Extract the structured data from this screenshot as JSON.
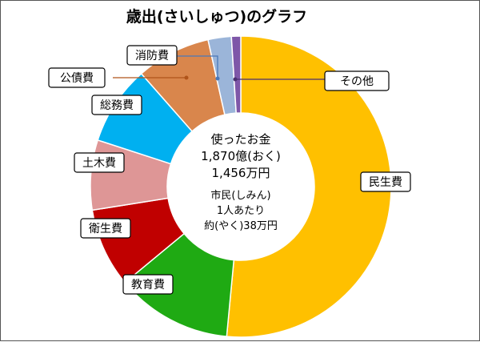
{
  "chart_data": {
    "type": "pie",
    "title": "歳出(さいしゅつ)のグラフ",
    "categories": [
      "民生費",
      "教育費",
      "衛生費",
      "土木費",
      "総務費",
      "公債費",
      "消防費",
      "その他"
    ],
    "values": [
      51.5,
      12.5,
      8.5,
      7.5,
      8.5,
      8.0,
      2.5,
      1.0
    ],
    "unit": "%",
    "colors": [
      "#FFC000",
      "#1FAA13",
      "#C00000",
      "#DE9696",
      "#00B0F0",
      "#D9864C",
      "#9BB5D9",
      "#7E57A8"
    ],
    "center_text": {
      "line1": "使ったお金",
      "line2": "1,870億(おく)",
      "line3": "1,456万円",
      "line4": "市民(しみん)",
      "line5": "1人あたり",
      "line6": "約(やく)38万円"
    }
  }
}
